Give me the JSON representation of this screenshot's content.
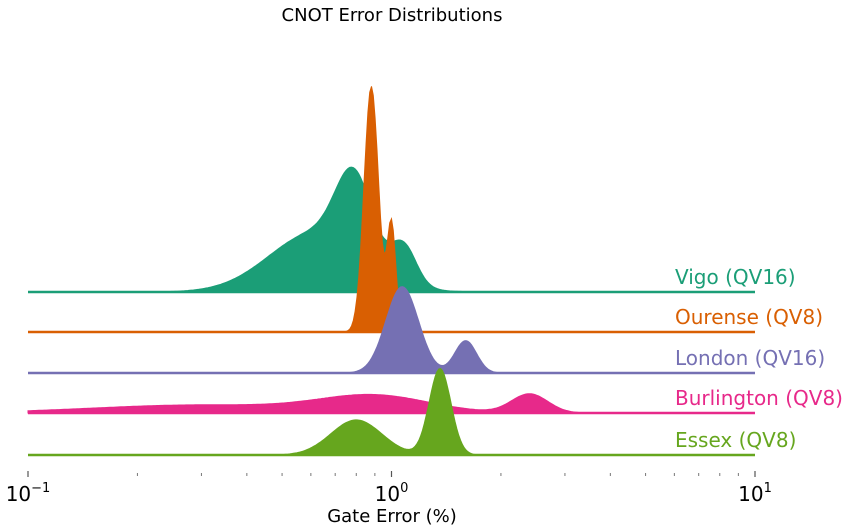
{
  "chart_data": {
    "type": "area",
    "title": "CNOT Error Distributions",
    "xlabel": "Gate Error (%)",
    "ylabel": "",
    "xscale": "log",
    "xlim": [
      0.1,
      10
    ],
    "x_ticks": [
      {
        "value": 0.1,
        "base": "10",
        "exp": "−1"
      },
      {
        "value": 1,
        "base": "10",
        "exp": "0"
      },
      {
        "value": 10,
        "base": "10",
        "exp": "1"
      }
    ],
    "grid": false,
    "legend": "labels at right end of each ridge",
    "series": [
      {
        "name": "Vigo (QV16)",
        "color": "#1b9e77",
        "peaks": [
          {
            "x": 0.62,
            "h": 0.22,
            "w": 0.13
          },
          {
            "x": 0.79,
            "h": 0.3,
            "w": 0.05
          },
          {
            "x": 1.08,
            "h": 0.14,
            "w": 0.035
          }
        ]
      },
      {
        "name": "Ourense (QV8)",
        "color": "#d95f02",
        "peaks": [
          {
            "x": 0.88,
            "h": 0.91,
            "w": 0.02
          },
          {
            "x": 1.0,
            "h": 0.4,
            "w": 0.012
          }
        ]
      },
      {
        "name": "London (QV16)",
        "color": "#7570b3",
        "peaks": [
          {
            "x": 1.07,
            "h": 0.32,
            "w": 0.045
          },
          {
            "x": 1.6,
            "h": 0.12,
            "w": 0.03
          }
        ]
      },
      {
        "name": "Burlington (QV8)",
        "color": "#e7298a",
        "peaks": [
          {
            "x": 0.3,
            "h": 0.03,
            "w": 0.3
          },
          {
            "x": 0.9,
            "h": 0.06,
            "w": 0.15
          },
          {
            "x": 2.4,
            "h": 0.07,
            "w": 0.05
          }
        ]
      },
      {
        "name": "Essex (QV8)",
        "color": "#66a61e",
        "peaks": [
          {
            "x": 0.8,
            "h": 0.13,
            "w": 0.07
          },
          {
            "x": 1.36,
            "h": 0.32,
            "w": 0.03
          }
        ]
      }
    ]
  }
}
